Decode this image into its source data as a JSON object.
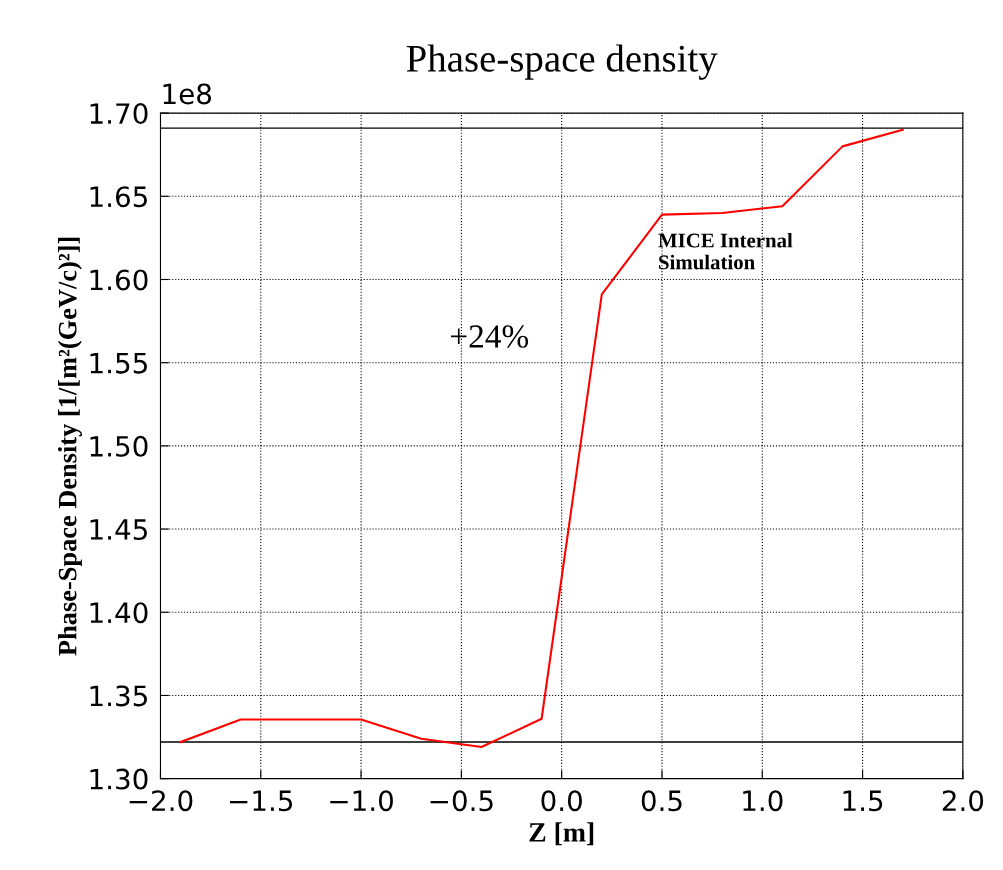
{
  "chart_data": {
    "type": "line",
    "title": "Phase-space density",
    "xlabel": "Z [m]",
    "ylabel": "Phase-Space Density [1/[m²(GeV/c)²]]",
    "x": [
      -1.9,
      -1.6,
      -1.0,
      -0.7,
      -0.4,
      -0.1,
      0.2,
      0.5,
      0.8,
      1.1,
      1.4,
      1.7
    ],
    "series": [
      {
        "color": "#ff0000",
        "values": [
          1.322,
          1.3355,
          1.3355,
          1.324,
          1.319,
          1.336,
          1.591,
          1.639,
          1.64,
          1.644,
          1.68,
          1.69
        ]
      }
    ],
    "xlim": [
      -2.0,
      2.0
    ],
    "xticks": [
      {
        "value": -2.0,
        "label": "−2.0"
      },
      {
        "value": -1.5,
        "label": "−1.5"
      },
      {
        "value": -1.0,
        "label": "−1.0"
      },
      {
        "value": -0.5,
        "label": "−0.5"
      },
      {
        "value": 0.0,
        "label": "0.0"
      },
      {
        "value": 0.5,
        "label": "0.5"
      },
      {
        "value": 1.0,
        "label": "1.0"
      },
      {
        "value": 1.5,
        "label": "1.5"
      },
      {
        "value": 2.0,
        "label": "2.0"
      }
    ],
    "ylim": [
      1.3,
      1.7
    ],
    "yticks": [
      {
        "value": 1.3,
        "label": "1.30"
      },
      {
        "value": 1.35,
        "label": "1.35"
      },
      {
        "value": 1.4,
        "label": "1.40"
      },
      {
        "value": 1.45,
        "label": "1.45"
      },
      {
        "value": 1.5,
        "label": "1.50"
      },
      {
        "value": 1.55,
        "label": "1.55"
      },
      {
        "value": 1.6,
        "label": "1.60"
      },
      {
        "value": 1.65,
        "label": "1.65"
      },
      {
        "value": 1.7,
        "label": "1.70"
      }
    ],
    "ref_lines": [
      {
        "axis": "y",
        "value": 1.322,
        "color": "#000000"
      },
      {
        "axis": "y",
        "value": 1.691,
        "color": "#000000"
      }
    ],
    "annotations": [
      "1e8",
      "+24%",
      "MICE Internal\nSimulation"
    ],
    "grid": true,
    "marker": "none",
    "line_style": "solid"
  }
}
